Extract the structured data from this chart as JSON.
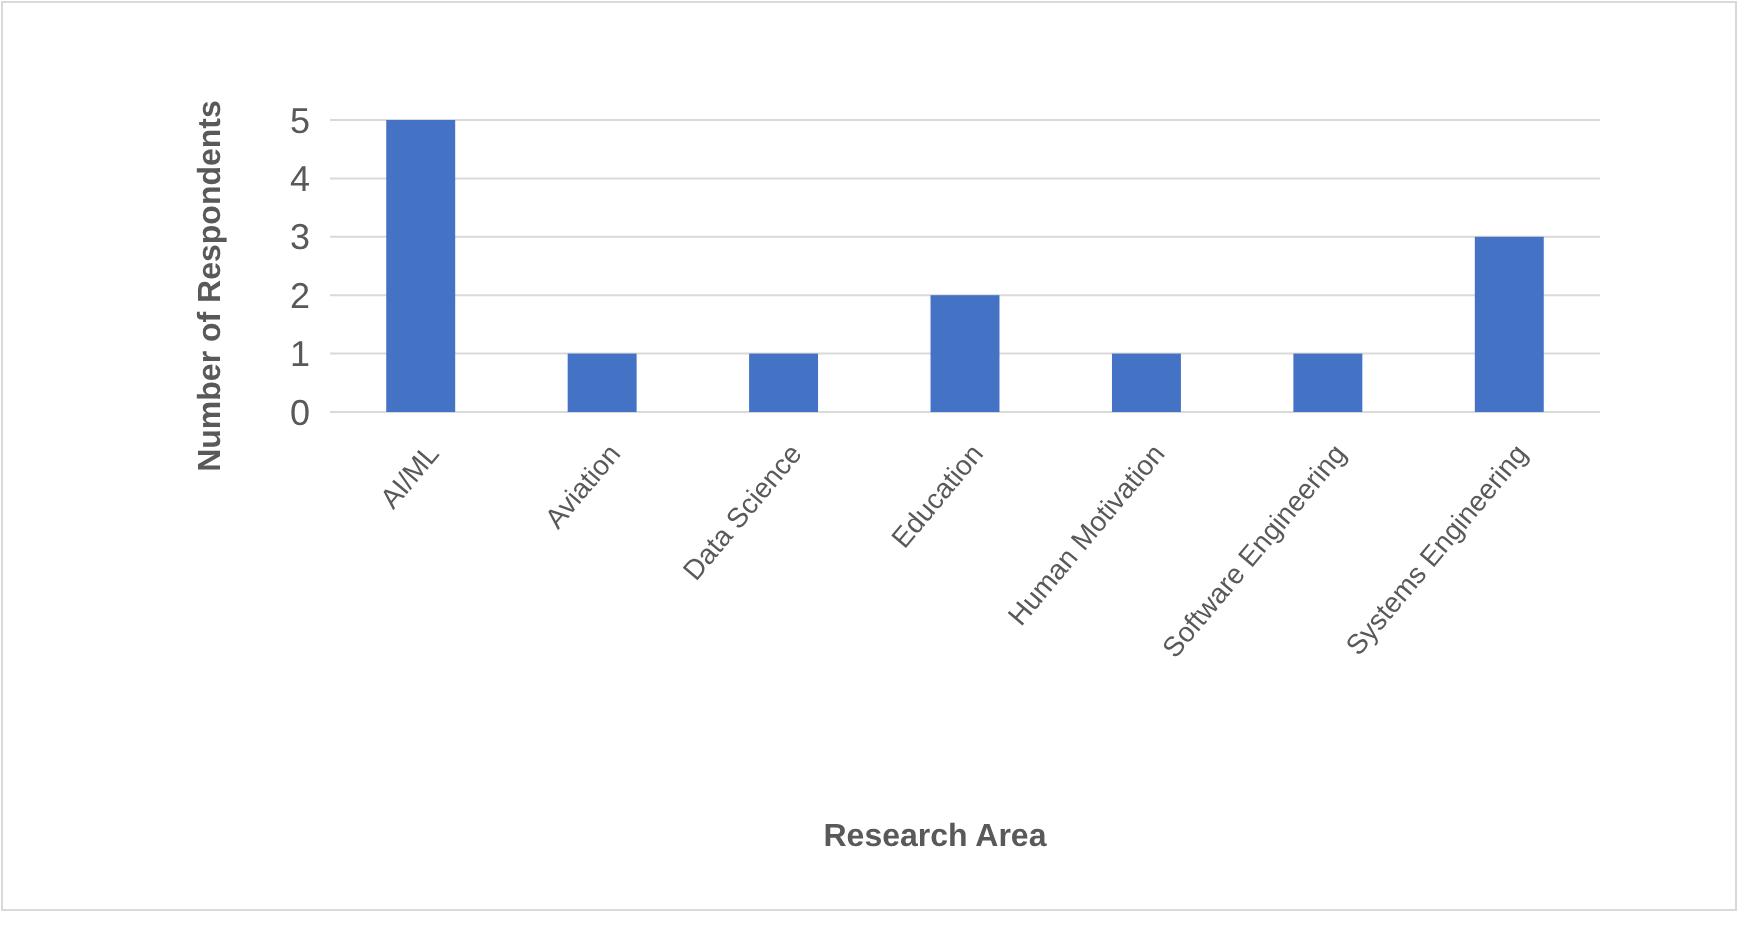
{
  "chart_data": {
    "type": "bar",
    "xlabel": "Research Area",
    "ylabel": "Number of Respondents",
    "categories": [
      "AI/ML",
      "Aviation",
      "Data Science",
      "Education",
      "Human Motivation",
      "Software Engineering",
      "Systems Engineering"
    ],
    "values": [
      5,
      1,
      1,
      2,
      1,
      1,
      3
    ],
    "color": "#4472c4",
    "ylim": [
      0,
      5
    ],
    "yticks": [
      0,
      1,
      2,
      3,
      4,
      5
    ],
    "grid": "y"
  }
}
